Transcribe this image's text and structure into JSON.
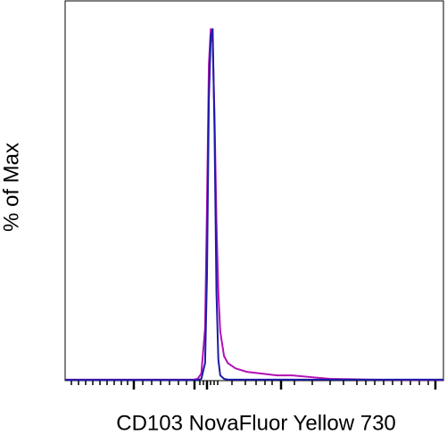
{
  "chart_data": {
    "type": "line",
    "x_label": "CD103 NovaFluor Yellow 730",
    "y_label": "% of Max",
    "x": [
      0,
      10,
      20,
      30,
      34,
      35,
      36,
      37,
      37.5,
      38,
      38.5,
      39,
      39.5,
      40,
      40.5,
      41,
      42,
      43,
      45,
      48,
      52,
      56,
      60,
      65,
      70,
      75,
      80,
      90,
      100
    ],
    "xlim": [
      0,
      100
    ],
    "ylim": [
      0,
      108
    ],
    "series": [
      {
        "color": "#b40fb4",
        "values": [
          0.3,
          0.3,
          0.3,
          0.3,
          0.3,
          0.5,
          2,
          15,
          50,
          90,
          100,
          96,
          75,
          45,
          25,
          14,
          7,
          5,
          3.5,
          2.5,
          2,
          1.5,
          1.5,
          1,
          0.5,
          0.4,
          0.3,
          0.2,
          0.2
        ]
      },
      {
        "color": "#1c1ca8",
        "values": [
          0.2,
          0.2,
          0.2,
          0.2,
          0.2,
          0.2,
          0.5,
          5,
          30,
          80,
          98,
          100,
          70,
          25,
          6,
          1.5,
          0.5,
          0.3,
          0.3,
          0.3,
          0.3,
          0.3,
          0.3,
          0.3,
          0.3,
          0.3,
          0.3,
          0.3,
          0.3
        ]
      }
    ]
  }
}
